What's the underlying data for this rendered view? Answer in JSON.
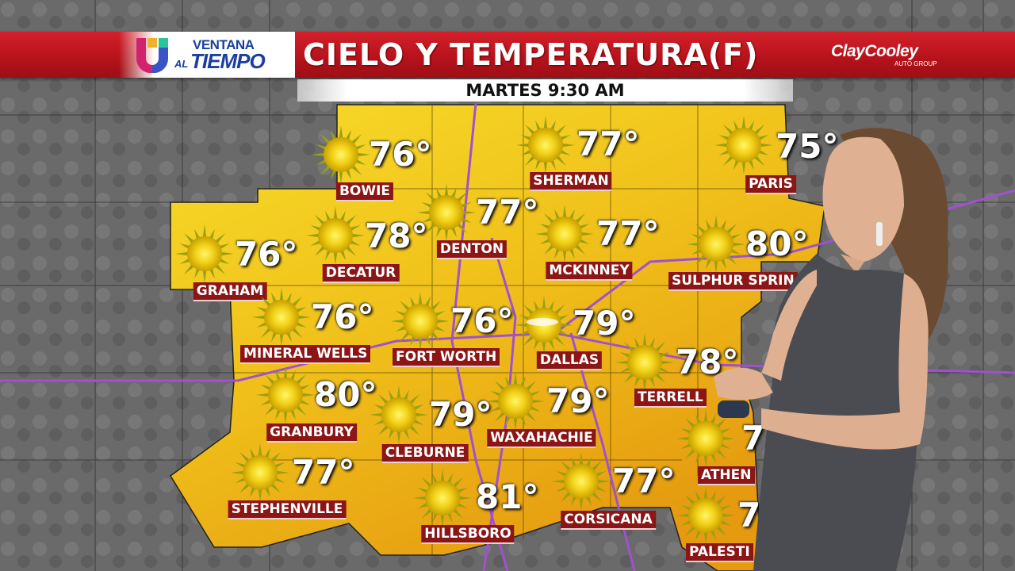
{
  "header": {
    "logo_line1": "VENTANA",
    "logo_line2_prefix": "AL",
    "logo_line2": "TIEMPO",
    "title": "CIELO Y TEMPERATURA(F)",
    "sponsor": "ClayCooley",
    "sponsor_sub": "AUTO GROUP",
    "subtitle": "MARTES 9:30 AM"
  },
  "colors": {
    "banner_red": "#c8161f",
    "label_red": "#8c1515",
    "map_yellow": "#f5d21c",
    "map_orange": "#e7a512"
  },
  "cities": [
    {
      "name": "BOWIE",
      "temp": "76°",
      "icon": "sun-icon"
    },
    {
      "name": "SHERMAN",
      "temp": "77°",
      "icon": "sun-icon"
    },
    {
      "name": "PARIS",
      "temp": "75°",
      "icon": "sun-icon"
    },
    {
      "name": "GRAHAM",
      "temp": "76°",
      "icon": "sun-icon"
    },
    {
      "name": "DECATUR",
      "temp": "78°",
      "icon": "sun-icon"
    },
    {
      "name": "DENTON",
      "temp": "77°",
      "icon": "sun-icon"
    },
    {
      "name": "MCKINNEY",
      "temp": "77°",
      "icon": "sun-icon"
    },
    {
      "name": "SULPHUR SPRIN",
      "temp": "80°",
      "icon": "sun-icon"
    },
    {
      "name": "MINERAL WELLS",
      "temp": "76°",
      "icon": "sun-icon"
    },
    {
      "name": "FORT WORTH",
      "temp": "76°",
      "icon": "sun-icon"
    },
    {
      "name": "DALLAS",
      "temp": "79°",
      "icon": "mostly-sunny-icon"
    },
    {
      "name": "TERRELL",
      "temp": "78°",
      "icon": "sun-icon"
    },
    {
      "name": "GRANBURY",
      "temp": "80°",
      "icon": "sun-icon"
    },
    {
      "name": "CLEBURNE",
      "temp": "79°",
      "icon": "sun-icon"
    },
    {
      "name": "WAXAHACHIE",
      "temp": "79°",
      "icon": "sun-icon"
    },
    {
      "name": "ATHEN",
      "temp": "7",
      "icon": "sun-icon"
    },
    {
      "name": "STEPHENVILLE",
      "temp": "77°",
      "icon": "sun-icon"
    },
    {
      "name": "HILLSBORO",
      "temp": "81°",
      "icon": "sun-icon"
    },
    {
      "name": "CORSICANA",
      "temp": "77°",
      "icon": "sun-icon"
    },
    {
      "name": "PALESTI",
      "temp": "7",
      "icon": "sun-icon"
    }
  ]
}
